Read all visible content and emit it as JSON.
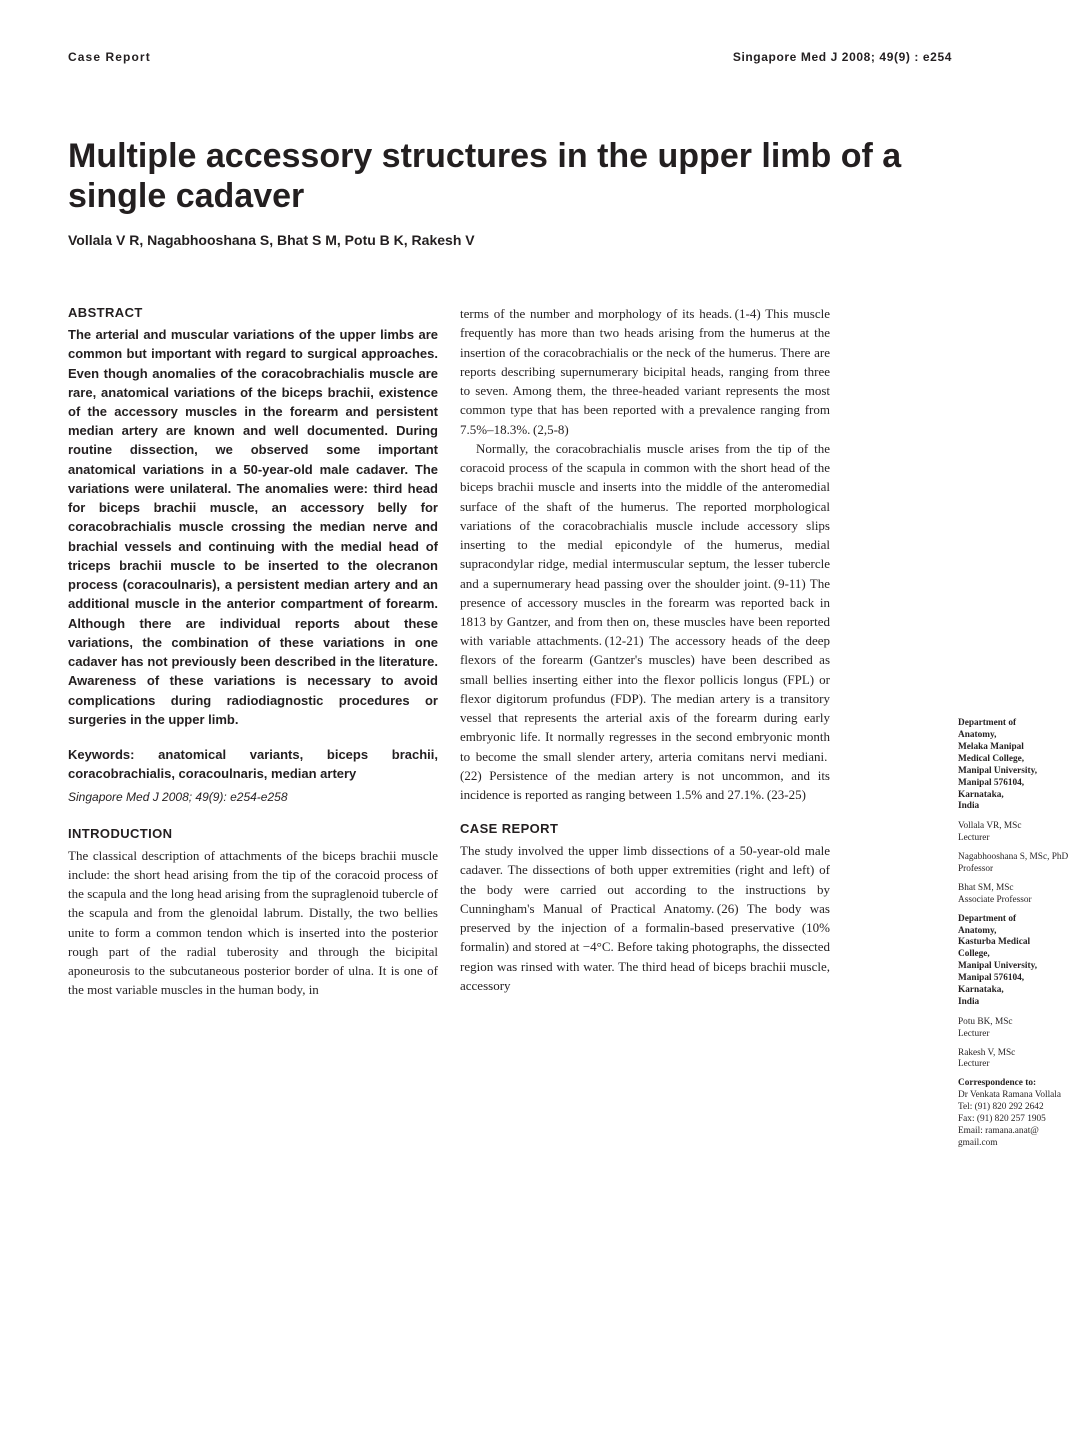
{
  "running_head": {
    "left": "Case Report",
    "right": "Singapore Med J 2008; 49(9) : e254"
  },
  "title": "Multiple accessory structures in the upper limb of a single cadaver",
  "authors": "Vollala V R, Nagabhooshana S, Bhat S M, Potu B K, Rakesh V",
  "abstract": {
    "heading": "ABSTRACT",
    "body": "The arterial and muscular variations of the upper limbs are common but important with regard to surgical approaches. Even though anomalies of the coracobrachialis muscle are rare, anatomical variations of the biceps brachii, existence of the accessory muscles in the forearm and persistent median artery are known and well documented. During routine dissection, we observed some important anatomical variations in a 50-year-old male cadaver. The variations were unilateral. The anomalies were: third head for biceps brachii muscle, an accessory belly for coracobrachialis muscle crossing the median nerve and brachial vessels and continuing with the medial head of triceps brachii muscle to be inserted to the olecranon process (coracoulnaris), a persistent median artery and an additional muscle in the anterior compartment of forearm. Although there are individual reports about these variations, the combination of these variations in one cadaver has not previously been described in the literature. Awareness of these variations is necessary to avoid complications during radiodiagnostic procedures or surgeries in the upper limb."
  },
  "keywords": {
    "label": "Keywords:",
    "text": " anatomical variants, biceps brachii, coracobrachialis, coracoulnaris, median artery"
  },
  "citation": "Singapore Med J 2008; 49(9): e254-e258",
  "intro": {
    "heading": "INTRODUCTION",
    "body": "The classical description of attachments of the biceps brachii muscle include: the short head arising from the tip of the coracoid process of the scapula and the long head arising from the supraglenoid tubercle of the scapula and from the glenoidal labrum. Distally, the two bellies unite to form a common tendon which is inserted into the posterior rough part of the radial tuberosity and through the bicipital aponeurosis to the subcutaneous posterior border of ulna. It is one of the most variable muscles in the human body, in"
  },
  "col2": {
    "p1": "terms of the number and morphology of its heads. (1-4) This muscle frequently has more than two heads arising from the humerus at the insertion of the coracobrachialis or the neck of the humerus. There are reports describing supernumerary bicipital heads, ranging from three to seven. Among them, the three-headed variant represents the most common type that has been reported with a prevalence ranging from 7.5%–18.3%. (2,5-8)",
    "p2": "Normally, the coracobrachialis muscle arises from the tip of the coracoid process of the scapula in common with the short head of the biceps brachii muscle and inserts into the middle of the anteromedial surface of the shaft of the humerus.  The reported morphological variations of the coracobrachialis muscle include accessory slips inserting to the medial epicondyle of the humerus, medial supracondylar ridge, medial intermuscular septum, the lesser tubercle and a supernumerary head passing over the shoulder joint. (9-11) The presence of accessory muscles in the forearm was reported back in 1813 by Gantzer, and from then on, these muscles have been reported with variable attachments. (12-21) The accessory heads of the deep flexors of the forearm (Gantzer's muscles) have been described as small bellies inserting either into the flexor pollicis longus (FPL) or flexor digitorum profundus (FDP). The median artery is a transitory vessel that represents the arterial axis of the forearm during early embryonic life. It normally regresses in the second embryonic month to become the small slender artery, arteria comitans nervi mediani. (22) Persistence of the median artery is not uncommon, and its incidence is reported as ranging between 1.5% and 27.1%. (23-25)"
  },
  "case": {
    "heading": "CASE REPORT",
    "body": "The study involved the upper limb dissections of a 50-year-old male cadaver. The dissections of both upper extremities (right and left) of the body were carried out according to the instructions by Cunningham's Manual of Practical Anatomy. (26) The body was preserved by the injection of a formalin-based preservative (10% formalin) and stored at −4°C. Before taking photographs, the dissected region was rinsed with water. The third head of biceps brachii muscle, accessory"
  },
  "affil": {
    "dept1_lines": [
      "Department of",
      "Anatomy,",
      "Melaka Manipal",
      "Medical College,",
      "Manipal University,",
      "Manipal 576104,",
      "Karnataka,",
      "India"
    ],
    "p1_name": "Vollala VR, MSc",
    "p1_role": "Lecturer",
    "p2_name": "Nagabhooshana S, MSc, PhD",
    "p2_role": "Professor",
    "p3_name": "Bhat SM, MSc",
    "p3_role": "Associate Professor",
    "dept2_lines": [
      "Department of",
      "Anatomy,",
      "Kasturba Medical",
      "College,",
      "Manipal University,",
      "Manipal 576104,",
      "Karnataka,",
      "India"
    ],
    "p4_name": "Potu BK, MSc",
    "p4_role": "Lecturer",
    "p5_name": "Rakesh V, MSc",
    "p5_role": "Lecturer",
    "corr_head": "Correspondence to:",
    "corr_lines": [
      "Dr Venkata Ramana Vollala",
      "Tel: (91) 820 292 2642",
      "Fax: (91) 820 257 1905",
      "Email: ramana.anat@ gmail.com"
    ]
  }
}
